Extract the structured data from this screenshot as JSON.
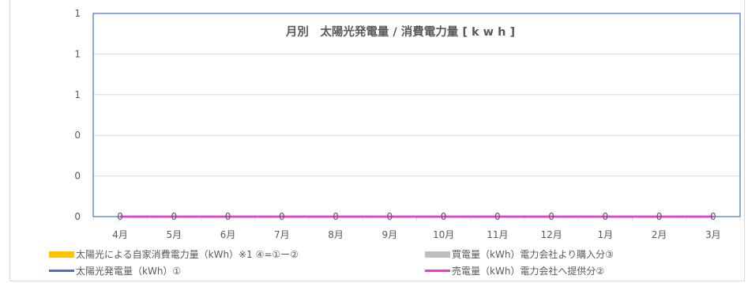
{
  "chart_data": {
    "type": "bar",
    "title": "月別　太陽光発電量 / 消費電力量 [ k w h ]",
    "categories": [
      "4月",
      "5月",
      "6月",
      "7月",
      "8月",
      "9月",
      "10月",
      "11月",
      "12月",
      "1月",
      "2月",
      "3月"
    ],
    "y_tick_labels": [
      "0",
      "0",
      "0",
      "1",
      "1",
      "1"
    ],
    "ylim": [
      0,
      1
    ],
    "grid": true,
    "legend_position": "bottom",
    "series": [
      {
        "name": "太陽光による自家消費電力量（kWh）※1 ④=①ー②",
        "kind": "bar",
        "color": "#ffc000",
        "values": [
          0,
          0,
          0,
          0,
          0,
          0,
          0,
          0,
          0,
          0,
          0,
          0
        ]
      },
      {
        "name": "買電量（kWh）電力会社より購入分③",
        "kind": "bar",
        "color": "#bfbfbf",
        "values": [
          0,
          0,
          0,
          0,
          0,
          0,
          0,
          0,
          0,
          0,
          0,
          0
        ]
      },
      {
        "name": "太陽光発電量（kWh）①",
        "kind": "line",
        "color": "#4472c4",
        "values": [
          0,
          0,
          0,
          0,
          0,
          0,
          0,
          0,
          0,
          0,
          0,
          0
        ]
      },
      {
        "name": "売電量（kWh）電力会社へ提供分②",
        "kind": "line",
        "color": "#ff33cc",
        "values": [
          0,
          0,
          0,
          0,
          0,
          0,
          0,
          0,
          0,
          0,
          0,
          0
        ]
      }
    ],
    "data_labels": [
      "0",
      "0",
      "0",
      "0",
      "0",
      "0",
      "0",
      "0",
      "0",
      "0",
      "0",
      "0"
    ]
  }
}
